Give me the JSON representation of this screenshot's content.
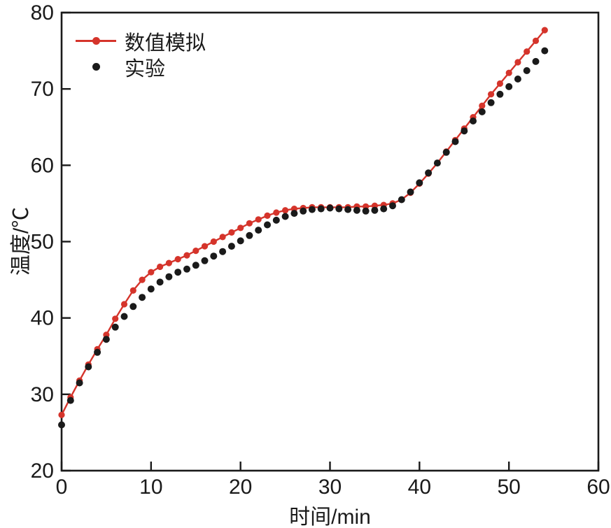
{
  "chart_data": {
    "type": "line",
    "title": "",
    "xlabel": "时间/min",
    "ylabel": "温度/℃",
    "xlim": [
      0,
      60
    ],
    "ylim": [
      20,
      80
    ],
    "x_ticks": [
      0,
      10,
      20,
      30,
      40,
      50,
      60
    ],
    "y_ticks": [
      20,
      30,
      40,
      50,
      60,
      70,
      80
    ],
    "grid": false,
    "legend_position": "top-left-inside",
    "colors": {
      "ink": "#1a1a1a",
      "simulation_red": "#d5342b",
      "background": "#ffffff"
    },
    "series": [
      {
        "name": "数值模拟",
        "type": "line+markers",
        "color": "#d5342b",
        "marker": "circle",
        "x": [
          0,
          1,
          2,
          3,
          4,
          5,
          6,
          7,
          8,
          9,
          10,
          11,
          12,
          13,
          14,
          15,
          16,
          17,
          18,
          19,
          20,
          21,
          22,
          23,
          24,
          25,
          26,
          27,
          28,
          29,
          30,
          31,
          32,
          33,
          34,
          35,
          36,
          37,
          38,
          39,
          40,
          41,
          42,
          43,
          44,
          45,
          46,
          47,
          48,
          49,
          50,
          51,
          52,
          53,
          54
        ],
        "y": [
          27.3,
          29.6,
          31.8,
          33.9,
          35.9,
          37.8,
          39.9,
          41.8,
          43.6,
          45.0,
          46.0,
          46.7,
          47.2,
          47.7,
          48.2,
          48.8,
          49.4,
          50.0,
          50.6,
          51.2,
          51.8,
          52.4,
          52.9,
          53.4,
          53.8,
          54.1,
          54.3,
          54.4,
          54.5,
          54.5,
          54.5,
          54.5,
          54.5,
          54.6,
          54.6,
          54.7,
          54.8,
          55.0,
          55.5,
          56.4,
          57.6,
          58.9,
          60.3,
          61.8,
          63.3,
          64.8,
          66.3,
          67.8,
          69.3,
          70.7,
          72.1,
          73.5,
          74.9,
          76.3,
          77.7
        ]
      },
      {
        "name": "实验",
        "type": "scatter",
        "color": "#1a1a1a",
        "marker": "circle",
        "x": [
          0,
          1,
          2,
          3,
          4,
          5,
          6,
          7,
          8,
          9,
          10,
          11,
          12,
          13,
          14,
          15,
          16,
          17,
          18,
          19,
          20,
          21,
          22,
          23,
          24,
          25,
          26,
          27,
          28,
          29,
          30,
          31,
          32,
          33,
          34,
          35,
          36,
          37,
          38,
          39,
          40,
          41,
          42,
          43,
          44,
          45,
          46,
          47,
          48,
          49,
          50,
          51,
          52,
          53,
          54
        ],
        "y": [
          26.0,
          29.2,
          31.5,
          33.6,
          35.5,
          37.2,
          38.8,
          40.2,
          41.5,
          42.7,
          43.8,
          44.7,
          45.4,
          46.0,
          46.4,
          46.9,
          47.5,
          48.1,
          48.7,
          49.4,
          50.1,
          50.8,
          51.5,
          52.2,
          52.8,
          53.3,
          53.7,
          54.0,
          54.2,
          54.3,
          54.4,
          54.3,
          54.2,
          54.1,
          54.0,
          54.1,
          54.3,
          54.7,
          55.5,
          56.5,
          57.7,
          59.0,
          60.3,
          61.7,
          63.1,
          64.5,
          65.8,
          67.0,
          68.2,
          69.3,
          70.3,
          71.3,
          72.4,
          73.6,
          75.0
        ]
      }
    ]
  }
}
